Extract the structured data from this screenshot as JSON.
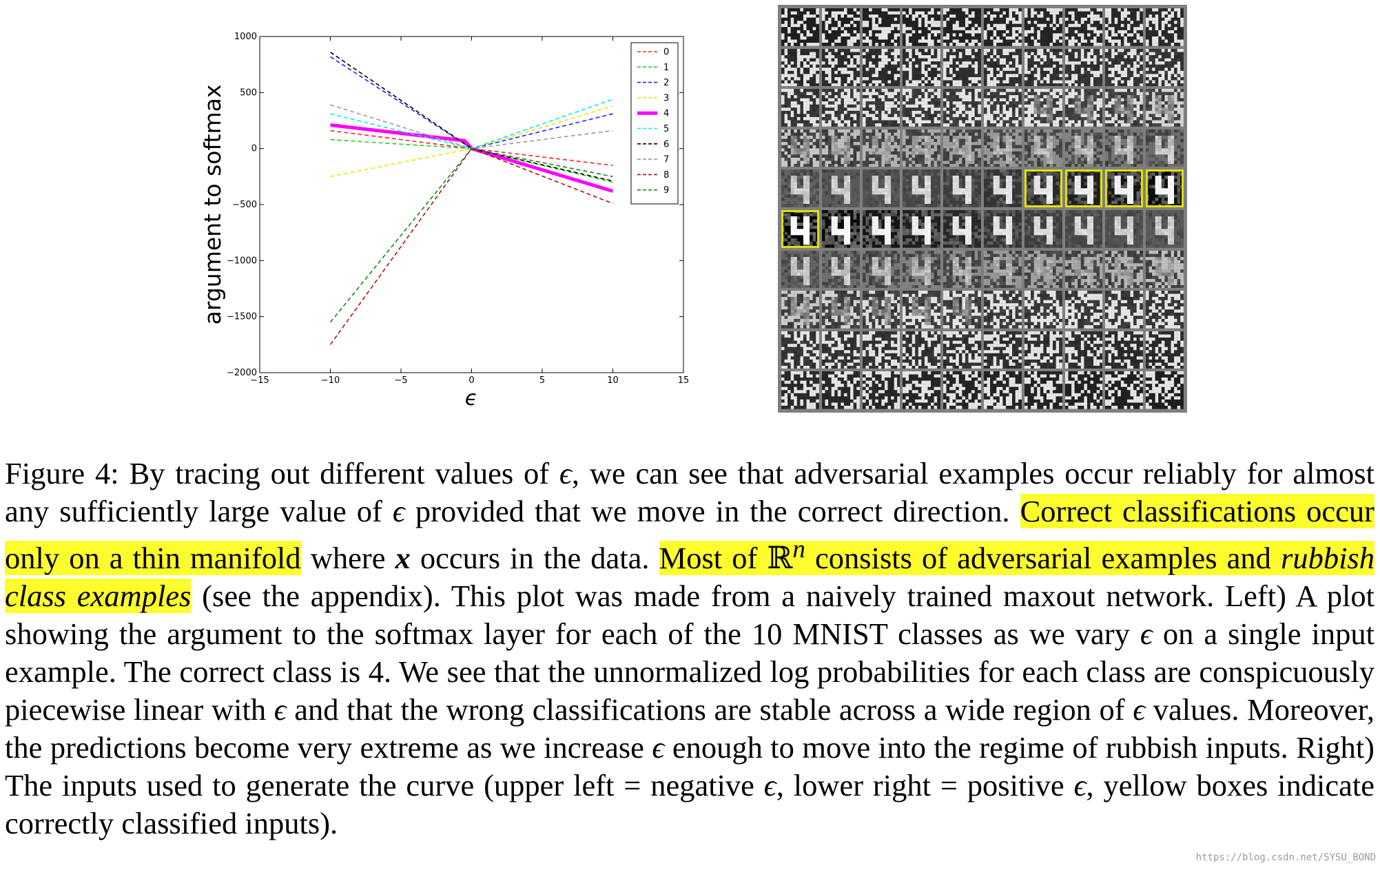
{
  "chart_data": {
    "type": "line",
    "xlabel": "ϵ",
    "ylabel": "argument to softmax",
    "xlim": [
      -15,
      15
    ],
    "ylim": [
      -2000,
      1000
    ],
    "xticks": [
      "−15",
      "−10",
      "−5",
      "0",
      "5",
      "10",
      "15"
    ],
    "yticks": [
      "1000",
      "500",
      "0",
      "−500",
      "−1000",
      "−1500",
      "−2000"
    ],
    "legend_position": "top-right",
    "grid": false,
    "series": [
      {
        "name": "0",
        "color": "#ff2020",
        "dashed": true,
        "points": [
          [
            -10,
            160
          ],
          [
            0,
            0
          ],
          [
            10,
            -150
          ]
        ]
      },
      {
        "name": "1",
        "color": "#22cc22",
        "dashed": true,
        "points": [
          [
            -10,
            80
          ],
          [
            0,
            0
          ],
          [
            10,
            -300
          ]
        ]
      },
      {
        "name": "2",
        "color": "#2020ff",
        "dashed": true,
        "points": [
          [
            -10,
            820
          ],
          [
            0,
            0
          ],
          [
            10,
            310
          ]
        ]
      },
      {
        "name": "3",
        "color": "#e8e800",
        "dashed": true,
        "points": [
          [
            -10,
            -250
          ],
          [
            0,
            0
          ],
          [
            10,
            380
          ]
        ]
      },
      {
        "name": "4",
        "color": "#ff00ff",
        "dashed": false,
        "points": [
          [
            -10,
            210
          ],
          [
            -0.5,
            70
          ],
          [
            0,
            0
          ],
          [
            10,
            -380
          ]
        ]
      },
      {
        "name": "5",
        "color": "#00eeee",
        "dashed": true,
        "points": [
          [
            -10,
            310
          ],
          [
            0,
            0
          ],
          [
            10,
            440
          ]
        ]
      },
      {
        "name": "6",
        "color": "#000000",
        "dashed": true,
        "points": [
          [
            -10,
            860
          ],
          [
            0,
            0
          ],
          [
            10,
            -290
          ]
        ]
      },
      {
        "name": "7",
        "color": "#999999",
        "dashed": true,
        "points": [
          [
            -10,
            390
          ],
          [
            0,
            0
          ],
          [
            10,
            160
          ]
        ]
      },
      {
        "name": "8",
        "color": "#aa1111",
        "dashed": true,
        "points": [
          [
            -10,
            -1750
          ],
          [
            0,
            0
          ],
          [
            10,
            -490
          ]
        ]
      },
      {
        "name": "9",
        "color": "#118811",
        "dashed": true,
        "points": [
          [
            -10,
            -1550
          ],
          [
            0,
            0
          ],
          [
            10,
            -250
          ]
        ]
      }
    ]
  },
  "image_grid": {
    "rows": 10,
    "cols": 10,
    "correct_cells": [
      [
        4,
        6
      ],
      [
        4,
        7
      ],
      [
        4,
        8
      ],
      [
        4,
        9
      ],
      [
        5,
        0
      ]
    ]
  },
  "caption": {
    "p1": "Figure 4:   By tracing out different values of ",
    "eps1": "ϵ",
    "p2": ", we can see that adversarial examples occur reliably for almost any sufficiently large value of ",
    "eps2": "ϵ",
    "p3": " provided that we move in the correct direction. ",
    "hl1": "Correct classifications occur only on a thin manifold",
    "p4": " where ",
    "x": "x",
    "p5": " occurs in the data.  ",
    "hl2a": "Most of ",
    "rn": "ℝ",
    "n": "n",
    "hl2b": " consists of adversarial examples and ",
    "hl2c": "rubbish class examples",
    "p6": " (see the appendix).  This plot was made from a naively trained maxout network. Left) A plot showing the argument to the softmax layer for each of the 10 MNIST classes as we vary ",
    "eps3": "ϵ",
    "p7": " on a single input example. The correct class is 4. We see that the unnormalized log probabilities for each class are conspicuously piecewise linear with ",
    "eps4": "ϵ",
    "p8": " and that the wrong classifications are stable across a wide region of ",
    "eps5": "ϵ",
    "p9": " values. Moreover, the predictions become very extreme as we increase ",
    "eps6": "ϵ",
    "p10": " enough to move into the regime of rubbish inputs. Right) The inputs used to generate the curve (upper left = negative ",
    "eps7": "ϵ",
    "p11": ", lower right = positive ",
    "eps8": "ϵ",
    "p12": ", yellow boxes indicate correctly classified inputs)."
  },
  "watermark": "https://blog.csdn.net/SYSU_BOND"
}
